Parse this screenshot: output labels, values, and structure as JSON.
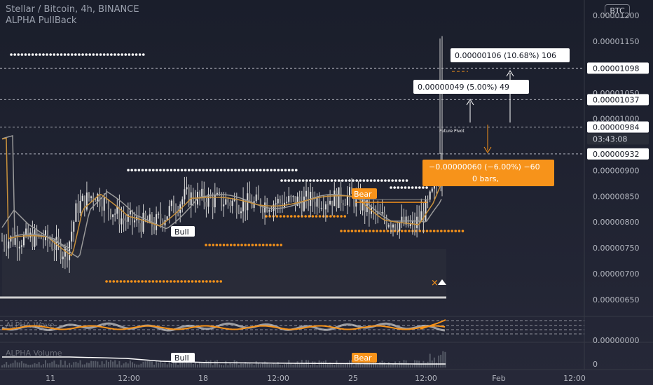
{
  "header": {
    "title": "Stellar / Bitcoin, 4h, BINANCE",
    "indicator": "ALPHA PullBack",
    "currency_badge": "BTC"
  },
  "colors": {
    "background": "#131722",
    "axis_text": "#b2b5be",
    "candle": "#d8d8d8",
    "bull_label_bg": "#ffffff",
    "bear_label_bg": "#f7931a",
    "orange": "#f7931a",
    "white_line": "#ffffff",
    "gray_ma": "#9a9a9a",
    "dash_line": "#b2b5be"
  },
  "chart_data": {
    "type": "candlestick",
    "title": "Stellar / Bitcoin, 4h, BINANCE",
    "x_ticks": [
      "11",
      "12:00",
      "18",
      "12:00",
      "25",
      "12:00",
      "Feb",
      "12:00"
    ],
    "y_ticks": [
      "0.00001200",
      "0.00001150",
      "0.00001098",
      "0.00001050",
      "0.00001037",
      "0.00001000",
      "0.00000984",
      "0.00000932",
      "0.00000900",
      "0.00000850",
      "0.00000800",
      "0.00000750",
      "0.00000700",
      "0.00000650"
    ],
    "ylim": [
      6.2e-06,
      1.23e-05
    ],
    "price_labels": [
      {
        "price": 1.098e-05,
        "text": "0.00001098"
      },
      {
        "price": 1.037e-05,
        "text": "0.00001037"
      },
      {
        "price": 9.84e-06,
        "text": "0.00000984"
      },
      {
        "price": 9.32e-06,
        "text": "0.00000932"
      }
    ],
    "countdown": "03:43:08",
    "target_boxes": [
      {
        "text": "0.00000106 (10.68%) 106",
        "target": 1.098e-05
      },
      {
        "text": "0.00000049 (5.00%) 49",
        "target": 1.037e-05
      }
    ],
    "stop_box": {
      "line1": "−0.00000060 (−6.00%) −60",
      "line2": "0 bars,"
    },
    "future_pivot_label": "Future Pivot",
    "signals": [
      {
        "type": "Bull",
        "text": "Bull"
      },
      {
        "type": "Bear",
        "text": "Bear"
      }
    ],
    "sub_panes": {
      "oscillator_label": "ALPHA Wave",
      "oscillator_zero": "0.00000000",
      "volume_label": "ALPHA Volume",
      "volume_zero": "0",
      "volume_signals": [
        "Bull",
        "Bear"
      ]
    }
  }
}
